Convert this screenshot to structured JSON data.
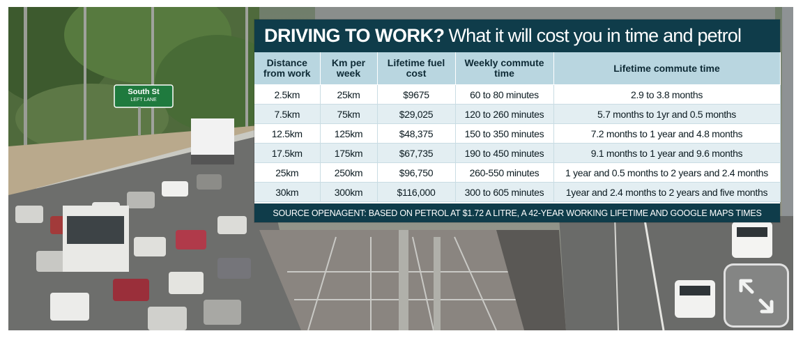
{
  "graphic": {
    "headline_lead": "DRIVING TO WORK?",
    "headline_rest": "What it will cost you in time and petrol",
    "columns": [
      "Distance from work",
      "Km per week",
      "Lifetime fuel cost",
      "Weekly commute time",
      "Lifetime commute time"
    ],
    "rows": [
      [
        "2.5km",
        "25km",
        "$9675",
        "60 to 80 minutes",
        "2.9 to 3.8 months"
      ],
      [
        "7.5km",
        "75km",
        "$29,025",
        "120 to 260 minutes",
        "5.7 months to 1yr and 0.5 months"
      ],
      [
        "12.5km",
        "125km",
        "$48,375",
        "150 to 350 minutes",
        "7.2 months to 1 year and 4.8 months"
      ],
      [
        "17.5km",
        "175km",
        "$67,735",
        "190 to 450 minutes",
        "9.1 months to 1 year and 9.6 months"
      ],
      [
        "25km",
        "250km",
        "$96,750",
        "260-550 minutes",
        "1 year and 0.5 months to 2 years and 2.4 months"
      ],
      [
        "30km",
        "300km",
        "$116,000",
        "300 to 605 minutes",
        "1year and 2.4 months to 2 years and five months"
      ]
    ],
    "source": "SOURCE OPENAGENT: BASED ON PETROL AT $1.72 A LITRE, A 42-YEAR WORKING LIFETIME AND GOOGLE MAPS TIMES"
  },
  "photo": {
    "road_sign": "South St",
    "road_sign_sub": "LEFT LANE"
  },
  "controls": {
    "expand_icon": "expand-diagonal-icon"
  },
  "colors": {
    "navy": "#0f3c4a",
    "header_blue": "#b9d6e0",
    "row_alt": "#e3eef2"
  }
}
